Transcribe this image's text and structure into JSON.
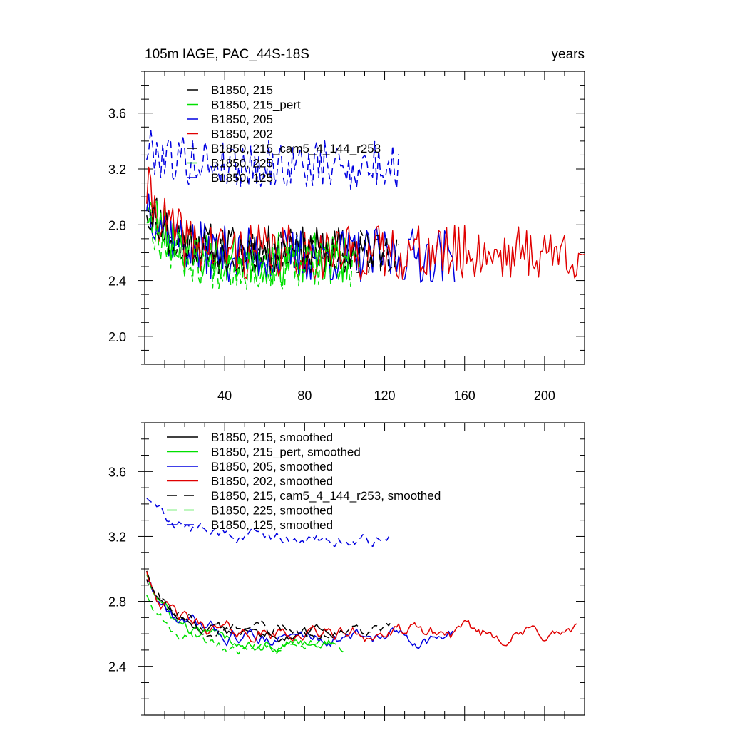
{
  "chart_data": [
    {
      "type": "line",
      "title_left": "105m IAGE, PAC_44S-18S",
      "title_right": "years",
      "xlim": [
        0,
        220
      ],
      "ylim": [
        1.8,
        3.9
      ],
      "x_ticks": [
        40,
        80,
        120,
        160,
        200
      ],
      "y_ticks": [
        2.0,
        2.4,
        2.8,
        3.2,
        3.6
      ],
      "y_tick_labels": [
        "2.0",
        "2.4",
        "2.8",
        "3.2",
        "3.6"
      ],
      "legend_position": "top-left",
      "series": [
        {
          "name": "B1850, 215",
          "color": "#000000",
          "dash": "solid",
          "x_start": 1,
          "x_end": 120,
          "base": 2.62,
          "start": 3.0,
          "decay": 12,
          "amp": 0.17,
          "seed": 11
        },
        {
          "name": "B1850, 215_pert",
          "color": "#00e000",
          "dash": "solid",
          "x_start": 1,
          "x_end": 102,
          "base": 2.55,
          "start": 3.0,
          "decay": 12,
          "amp": 0.19,
          "seed": 23
        },
        {
          "name": "B1850, 205",
          "color": "#0000e0",
          "dash": "solid",
          "x_start": 1,
          "x_end": 155,
          "base": 2.58,
          "start": 3.0,
          "decay": 12,
          "amp": 0.2,
          "seed": 37
        },
        {
          "name": "B1850, 202",
          "color": "#e00000",
          "dash": "solid",
          "x_start": 1,
          "x_end": 220,
          "base": 2.6,
          "start": 3.05,
          "decay": 12,
          "amp": 0.2,
          "seed": 41
        },
        {
          "name": "B1850, 215_cam5_4_144_r253",
          "color": "#000000",
          "dash": "dashed",
          "x_start": 1,
          "x_end": 127,
          "base": 2.6,
          "start": 2.95,
          "decay": 12,
          "amp": 0.17,
          "seed": 53
        },
        {
          "name": "B1850, 225",
          "color": "#00e000",
          "dash": "dashed",
          "x_start": 1,
          "x_end": 108,
          "base": 2.5,
          "start": 2.9,
          "decay": 12,
          "amp": 0.18,
          "seed": 67
        },
        {
          "name": "B1850, 125",
          "color": "#0000e0",
          "dash": "dashed",
          "x_start": 1,
          "x_end": 127,
          "base": 3.22,
          "start": 3.35,
          "decay": 20,
          "amp": 0.18,
          "seed": 79
        }
      ]
    },
    {
      "type": "line",
      "xlim": [
        0,
        220
      ],
      "ylim": [
        2.1,
        3.9
      ],
      "x_ticks": [
        40,
        80,
        120,
        160,
        200
      ],
      "y_ticks": [
        2.4,
        2.8,
        3.2,
        3.6
      ],
      "y_tick_labels": [
        "2.4",
        "2.8",
        "3.2",
        "3.6"
      ],
      "legend_position": "top-left",
      "series": [
        {
          "name": "B1850, 215, smoothed",
          "color": "#000000",
          "dash": "solid",
          "x_start": 1,
          "x_end": 96,
          "base": 2.6,
          "start": 3.0,
          "decay": 12,
          "amp": 0.07,
          "seed": 12
        },
        {
          "name": "B1850, 215_pert, smoothed",
          "color": "#00e000",
          "dash": "solid",
          "x_start": 1,
          "x_end": 94,
          "base": 2.55,
          "start": 2.98,
          "decay": 12,
          "amp": 0.08,
          "seed": 24
        },
        {
          "name": "B1850, 205, smoothed",
          "color": "#0000e0",
          "dash": "solid",
          "x_start": 1,
          "x_end": 154,
          "base": 2.58,
          "start": 2.95,
          "decay": 12,
          "amp": 0.09,
          "seed": 38
        },
        {
          "name": "B1850, 202, smoothed",
          "color": "#e00000",
          "dash": "solid",
          "x_start": 1,
          "x_end": 216,
          "base": 2.6,
          "start": 3.0,
          "decay": 12,
          "amp": 0.09,
          "seed": 42
        },
        {
          "name": "B1850, 215, cam5_4_144_r253, smoothed",
          "color": "#000000",
          "dash": "dashed",
          "x_start": 1,
          "x_end": 123,
          "base": 2.62,
          "start": 2.95,
          "decay": 12,
          "amp": 0.08,
          "seed": 54
        },
        {
          "name": "B1850, 225, smoothed",
          "color": "#00e000",
          "dash": "dashed",
          "x_start": 1,
          "x_end": 100,
          "base": 2.52,
          "start": 2.85,
          "decay": 12,
          "amp": 0.07,
          "seed": 68
        },
        {
          "name": "B1850, 125, smoothed",
          "color": "#0000e0",
          "dash": "dashed",
          "x_start": 1,
          "x_end": 123,
          "base": 3.18,
          "start": 3.45,
          "decay": 15,
          "amp": 0.08,
          "seed": 80
        }
      ]
    }
  ]
}
